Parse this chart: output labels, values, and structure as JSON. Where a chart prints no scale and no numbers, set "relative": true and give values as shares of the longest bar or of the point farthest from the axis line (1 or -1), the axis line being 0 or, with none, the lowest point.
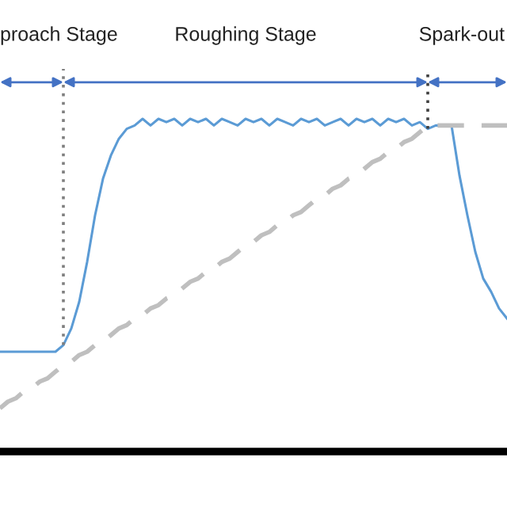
{
  "chart_data": {
    "type": "line",
    "relative": true,
    "tick_labels": false,
    "categories": [
      null,
      null,
      null,
      null,
      null,
      null,
      null,
      null,
      null,
      null,
      null,
      null,
      null,
      null,
      null,
      null,
      null,
      null,
      null,
      null,
      null,
      null,
      null,
      null,
      null,
      null,
      null,
      null,
      null,
      null,
      null,
      null,
      null,
      null,
      null,
      null,
      null,
      null,
      null,
      null,
      null,
      null,
      null,
      null,
      null,
      null,
      null,
      null,
      null,
      null,
      null,
      null,
      null,
      null,
      null,
      null,
      null,
      null,
      null,
      null,
      null,
      null,
      null,
      null,
      null
    ],
    "series": [
      {
        "color": "#5b9bd5",
        "line_style": "solid",
        "values": [
          0.3,
          0.3,
          0.3,
          0.3,
          0.3,
          0.3,
          0.3,
          0.3,
          0.32,
          0.37,
          0.45,
          0.57,
          0.71,
          0.82,
          0.89,
          0.94,
          0.97,
          0.98,
          1.0,
          0.98,
          1.0,
          0.99,
          1.0,
          0.98,
          1.0,
          0.99,
          1.0,
          0.98,
          1.0,
          0.99,
          0.98,
          1.0,
          0.99,
          1.0,
          0.98,
          1.0,
          0.99,
          0.98,
          1.0,
          0.99,
          1.0,
          0.98,
          0.99,
          1.0,
          0.98,
          1.0,
          0.99,
          1.0,
          0.98,
          1.0,
          0.99,
          1.0,
          0.98,
          0.99,
          0.97,
          0.98,
          0.98,
          0.98,
          0.83,
          0.71,
          0.6,
          0.52,
          0.48,
          0.43,
          0.4
        ]
      },
      {
        "color": "#bfbfbf",
        "line_style": "dashed",
        "values": [
          0.13,
          0.15,
          0.16,
          0.18,
          0.19,
          0.21,
          0.22,
          0.24,
          0.26,
          0.27,
          0.29,
          0.3,
          0.32,
          0.33,
          0.35,
          0.37,
          0.38,
          0.4,
          0.41,
          0.43,
          0.44,
          0.46,
          0.47,
          0.49,
          0.51,
          0.52,
          0.54,
          0.55,
          0.57,
          0.58,
          0.6,
          0.62,
          0.63,
          0.65,
          0.66,
          0.68,
          0.69,
          0.71,
          0.72,
          0.74,
          0.76,
          0.77,
          0.79,
          0.8,
          0.82,
          0.83,
          0.85,
          0.87,
          0.88,
          0.9,
          0.91,
          0.93,
          0.94,
          0.96,
          0.98,
          0.98,
          0.98,
          0.98,
          0.98,
          0.98,
          0.98,
          0.98,
          0.98,
          0.98,
          0.98
        ]
      }
    ],
    "annotations": [
      "proach Stage",
      "Roughing Stage",
      "Spark-out"
    ]
  }
}
